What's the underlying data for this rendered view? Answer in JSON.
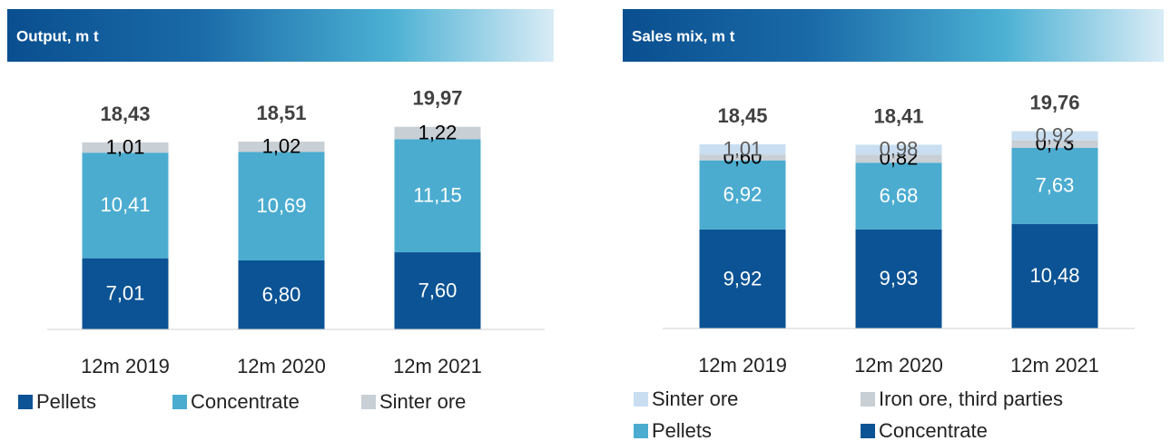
{
  "chart_data": [
    {
      "type": "stacked_bar",
      "title": "Output, m t",
      "categories": [
        "12m 2019",
        "12m 2020",
        "12m 2021"
      ],
      "totals": [
        18.43,
        18.51,
        19.97
      ],
      "total_labels": [
        "18,43",
        "18,51",
        "19,97"
      ],
      "series": [
        {
          "name": "Pellets",
          "color": "#0b5394",
          "label_color": "#ffffff",
          "values": [
            7.01,
            6.8,
            7.6
          ],
          "value_labels": [
            "7,01",
            "6,80",
            "7,60"
          ]
        },
        {
          "name": "Concentrate",
          "color": "#4bacd0",
          "label_color": "#ffffff",
          "values": [
            10.41,
            10.69,
            11.15
          ],
          "value_labels": [
            "10,41",
            "10,69",
            "11,15"
          ]
        },
        {
          "name": "Sinter ore",
          "color": "#c8cfd5",
          "label_color": "#000000",
          "values": [
            1.01,
            1.02,
            1.22
          ],
          "value_labels": [
            "1,01",
            "1,02",
            "1,22"
          ]
        }
      ]
    },
    {
      "type": "stacked_bar",
      "title": "Sales mix, m t",
      "categories": [
        "12m 2019",
        "12m 2020",
        "12m 2021"
      ],
      "totals": [
        18.45,
        18.41,
        19.76
      ],
      "total_labels": [
        "18,45",
        "18,41",
        "19,76"
      ],
      "series": [
        {
          "name": "Concentrate",
          "color": "#0b5394",
          "label_color": "#ffffff",
          "values": [
            9.92,
            9.93,
            10.48
          ],
          "value_labels": [
            "9,92",
            "9,93",
            "10,48"
          ]
        },
        {
          "name": "Pellets",
          "color": "#4bacd0",
          "label_color": "#ffffff",
          "values": [
            6.92,
            6.68,
            7.63
          ],
          "value_labels": [
            "6,92",
            "6,68",
            "7,63"
          ]
        },
        {
          "name": "Iron ore, third parties",
          "color": "#c8cfd5",
          "label_color": "#000000",
          "values": [
            0.6,
            0.82,
            0.73
          ],
          "value_labels": [
            "0,60",
            "0,82",
            "0,73"
          ]
        },
        {
          "name": "Sinter ore",
          "color": "#c9def1",
          "label_color": "#595959",
          "values": [
            1.01,
            0.98,
            0.92
          ],
          "value_labels": [
            "1,01",
            "0,98",
            "0,92"
          ]
        }
      ]
    }
  ]
}
